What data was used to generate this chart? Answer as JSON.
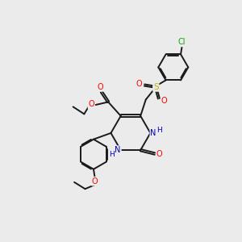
{
  "bg_color": "#ebebeb",
  "bond_color": "#1a1a1a",
  "bond_width": 1.4,
  "atom_colors": {
    "N": "#0000cc",
    "O": "#ff0000",
    "S": "#b8b800",
    "Cl": "#00aa00"
  },
  "font_size": 7.0,
  "fig_size": [
    3.0,
    3.0
  ],
  "dpi": 100
}
